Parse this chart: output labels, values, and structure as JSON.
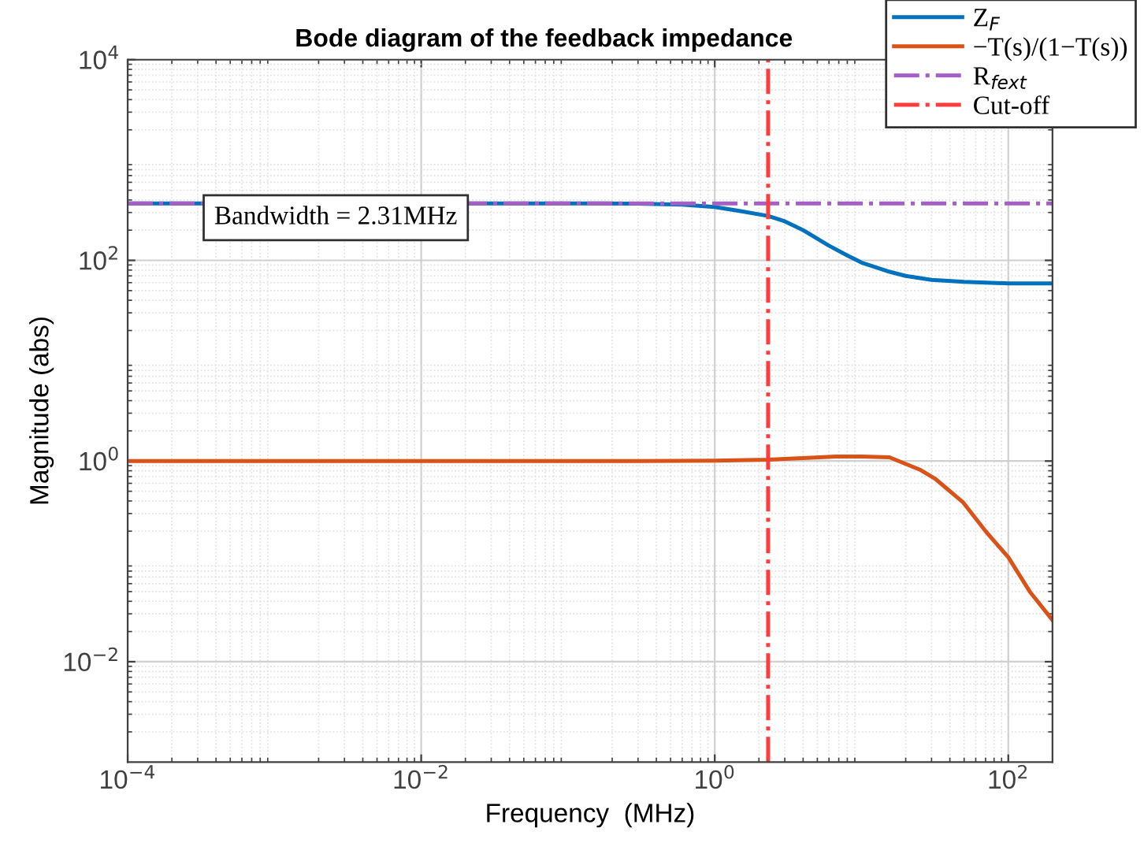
{
  "chart_data": {
    "type": "line",
    "title": "Bode diagram of the feedback impedance",
    "xlabel": "Frequency  (MHz)",
    "ylabel": "Magnitude (abs)",
    "log": "xy",
    "grid": true,
    "legend": "top right",
    "line_style": "solid",
    "marker": "none",
    "xlim": [
      0.0001,
      200
    ],
    "ylim": [
      0.001,
      10000
    ],
    "xticks": [
      {
        "value": 0.0001,
        "label": "10$^{−4}$"
      },
      {
        "value": 0.01,
        "label": "10$^{−2}$"
      },
      {
        "value": 1,
        "label": "10$^{0}$"
      },
      {
        "value": 100,
        "label": "10$^{2}$"
      }
    ],
    "yticks": [
      {
        "value": 0.01,
        "label": "10$^{−2}$"
      },
      {
        "value": 1,
        "label": "10$^{0}$"
      },
      {
        "value": 100,
        "label": "10$^{2}$"
      },
      {
        "value": 10000,
        "label": "10$^{4}$"
      }
    ],
    "series": [
      {
        "name": "Z$_{F}$",
        "color": "#0072bd",
        "x": [
          0.0001,
          0.1,
          0.3,
          0.6,
          1,
          1.5,
          2.31,
          3,
          4,
          6,
          8,
          10,
          15,
          20,
          30,
          50,
          100,
          200
        ],
        "values": [
          370,
          370,
          368,
          360,
          340,
          310,
          277,
          245,
          200,
          140,
          112,
          95,
          78,
          70,
          64,
          61,
          59,
          59
        ]
      },
      {
        "name": "−T(s)/(1−T(s))",
        "color": "#d95319",
        "x": [
          0.0001,
          0.1,
          0.3,
          1,
          2.31,
          4,
          6.7,
          10,
          15.5,
          21,
          25,
          32,
          49,
          70,
          100,
          140,
          200
        ],
        "values": [
          1,
          1,
          1,
          1.01,
          1.03,
          1.07,
          1.11,
          1.11,
          1.09,
          0.91,
          0.82,
          0.66,
          0.39,
          0.2,
          0.11,
          0.05,
          0.026
        ]
      },
      {
        "name": "R$_{fext}$",
        "color": "#a55fc4",
        "line_style": "dashdot",
        "x": [
          0.0001,
          200
        ],
        "values": [
          370,
          370
        ]
      },
      {
        "name": "Cut-off",
        "color": "#ff3c3c",
        "line_style": "dashdot",
        "x": [
          2.31,
          2.31
        ],
        "values": [
          0.001,
          10000
        ]
      }
    ],
    "annotations": [
      "Bandwidth = 2.31MHz"
    ]
  }
}
